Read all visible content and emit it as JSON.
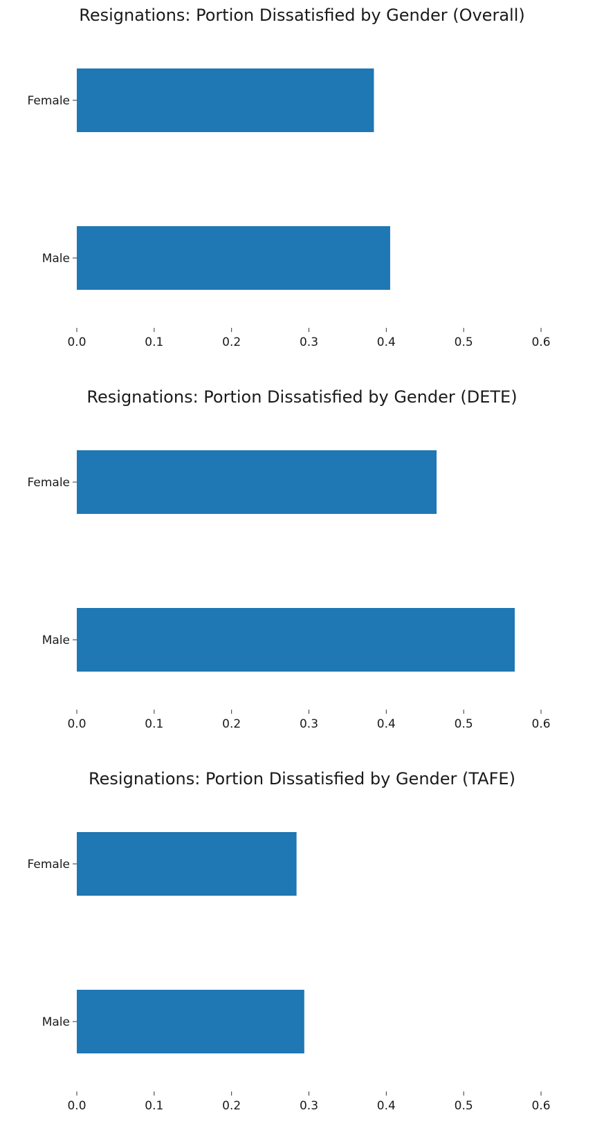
{
  "chart_data": [
    {
      "type": "bar",
      "orientation": "horizontal",
      "title": "Resignations: Portion Dissatisfied by Gender (Overall)",
      "categories": [
        "Female",
        "Male"
      ],
      "values": [
        0.384,
        0.405
      ],
      "xlabel": "",
      "ylabel": "",
      "xlim": [
        0,
        0.6
      ],
      "xticks": [
        "0.0",
        "0.1",
        "0.2",
        "0.3",
        "0.4",
        "0.5",
        "0.6"
      ],
      "grid": false,
      "legend": "none",
      "color": "#1f77b4"
    },
    {
      "type": "bar",
      "orientation": "horizontal",
      "title": "Resignations: Portion Dissatisfied by Gender (DETE)",
      "categories": [
        "Female",
        "Male"
      ],
      "values": [
        0.465,
        0.566
      ],
      "xlabel": "",
      "ylabel": "",
      "xlim": [
        0,
        0.6
      ],
      "xticks": [
        "0.0",
        "0.1",
        "0.2",
        "0.3",
        "0.4",
        "0.5",
        "0.6"
      ],
      "grid": false,
      "legend": "none",
      "color": "#1f77b4"
    },
    {
      "type": "bar",
      "orientation": "horizontal",
      "title": "Resignations: Portion Dissatisfied by Gender (TAFE)",
      "categories": [
        "Female",
        "Male"
      ],
      "values": [
        0.284,
        0.294
      ],
      "xlabel": "",
      "ylabel": "",
      "xlim": [
        0,
        0.6
      ],
      "xticks": [
        "0.0",
        "0.1",
        "0.2",
        "0.3",
        "0.4",
        "0.5",
        "0.6"
      ],
      "grid": false,
      "legend": "none",
      "color": "#1f77b4"
    }
  ]
}
